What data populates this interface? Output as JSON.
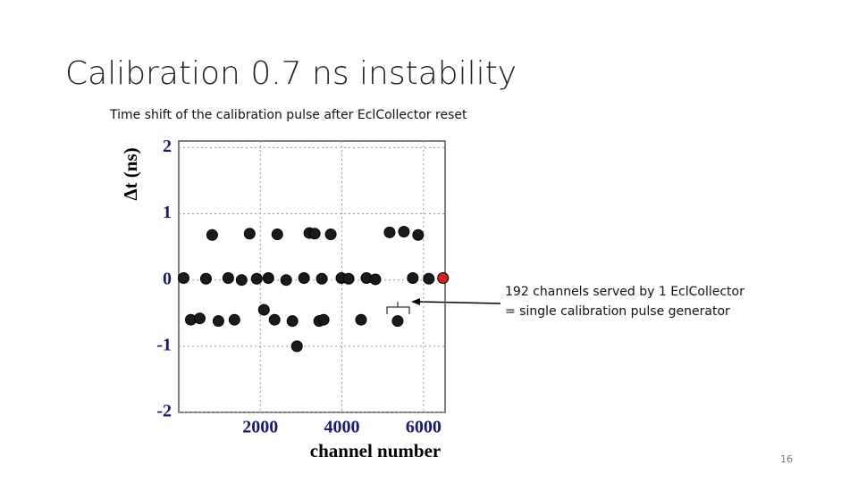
{
  "title": "Calibration 0.7 ns instability",
  "subtitle": "Time shift of the calibration pulse after EclCollector reset",
  "annotation": [
    "192 channels served by 1 EclCollector",
    "= single calibration pulse generator"
  ],
  "page_number": "16",
  "chart_data": {
    "type": "scatter",
    "x_label": "channel number",
    "y_label": "Δt (ns)",
    "xlim": [
      0,
      6530
    ],
    "ylim": [
      -2,
      2.1
    ],
    "xticks": [
      2000,
      4000,
      6000
    ],
    "yticks": [
      -2,
      -1,
      0,
      1,
      2
    ],
    "grid": true,
    "series": [
      {
        "color": "#1a1a1a",
        "x": [
          120,
          667,
          1213,
          1541,
          1913,
          2197,
          2634,
          3071,
          3508,
          3989,
          4164,
          4601,
          4820,
          5738,
          6131,
          820,
          1738,
          2416,
          3202,
          3334,
          3727,
          5170,
          5520,
          5869,
          295,
          514,
          973,
          1366,
          2088,
          2350,
          2787,
          3443,
          3552,
          4470,
          5367,
          2898
        ],
        "values": [
          0.03,
          0.02,
          0.03,
          0.0,
          0.02,
          0.03,
          0.0,
          0.03,
          0.02,
          0.03,
          0.02,
          0.03,
          0.01,
          0.03,
          0.02,
          0.68,
          0.7,
          0.69,
          0.71,
          0.7,
          0.69,
          0.72,
          0.73,
          0.68,
          -0.6,
          -0.58,
          -0.62,
          -0.6,
          -0.45,
          -0.6,
          -0.62,
          -0.62,
          -0.6,
          -0.6,
          -0.62,
          -1.0
        ]
      },
      {
        "color": "#d62020",
        "x": [
          6480
        ],
        "values": [
          0.03
        ]
      }
    ]
  }
}
